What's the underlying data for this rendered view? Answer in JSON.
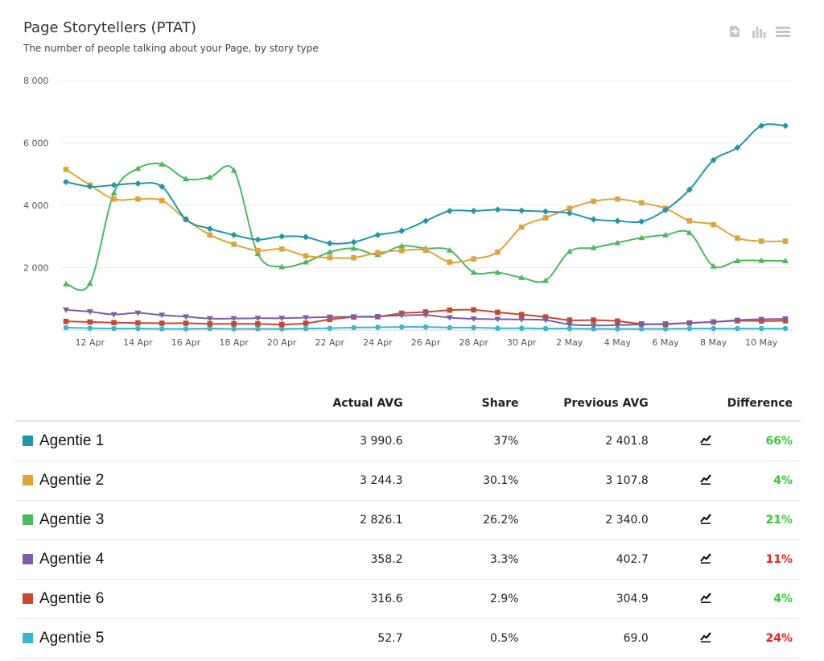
{
  "header": {
    "title": "Page Storytellers (PTAT)",
    "subtitle": "The number of people talking about your Page, by story type"
  },
  "toolbar": {
    "icons": [
      "export-icon",
      "bar-chart-icon",
      "menu-icon"
    ]
  },
  "chart_data": {
    "type": "line",
    "title": "Page Storytellers (PTAT)",
    "subtitle": "The number of people talking about your Page, by story type",
    "ylim": [
      0,
      8000
    ],
    "yticks": [
      0,
      2000,
      4000,
      6000,
      8000
    ],
    "ytick_labels": [
      "",
      "2 000",
      "4 000",
      "6 000",
      "8 000"
    ],
    "x": [
      "11 Apr",
      "12 Apr",
      "13 Apr",
      "14 Apr",
      "15 Apr",
      "16 Apr",
      "17 Apr",
      "18 Apr",
      "19 Apr",
      "20 Apr",
      "21 Apr",
      "22 Apr",
      "23 Apr",
      "24 Apr",
      "25 Apr",
      "26 Apr",
      "27 Apr",
      "28 Apr",
      "29 Apr",
      "30 Apr",
      "1 May",
      "2 May",
      "3 May",
      "4 May",
      "5 May",
      "6 May",
      "7 May",
      "8 May",
      "9 May",
      "10 May",
      "11 May"
    ],
    "xtick_labels": [
      "12 Apr",
      "14 Apr",
      "16 Apr",
      "18 Apr",
      "20 Apr",
      "22 Apr",
      "24 Apr",
      "26 Apr",
      "28 Apr",
      "30 Apr",
      "2 May",
      "4 May",
      "6 May",
      "8 May",
      "10 May"
    ],
    "series": [
      {
        "name": "Agentie 1",
        "color": "#2196a8",
        "marker": "diamond",
        "values": [
          4750,
          4600,
          4650,
          4700,
          4600,
          3550,
          3250,
          3050,
          2900,
          3000,
          2980,
          2780,
          2820,
          3050,
          3180,
          3500,
          3820,
          3820,
          3860,
          3830,
          3800,
          3750,
          3550,
          3500,
          3480,
          3850,
          4500,
          5450,
          5850,
          6550,
          6550
        ]
      },
      {
        "name": "Agentie 2",
        "color": "#e0a339",
        "marker": "square",
        "values": [
          5150,
          4650,
          4200,
          4200,
          4150,
          3550,
          3050,
          2750,
          2550,
          2600,
          2380,
          2320,
          2320,
          2480,
          2550,
          2560,
          2180,
          2280,
          2500,
          3300,
          3600,
          3900,
          4130,
          4200,
          4080,
          3900,
          3500,
          3380,
          2950,
          2850,
          2850
        ]
      },
      {
        "name": "Agentie 3",
        "color": "#4cb860",
        "marker": "triangle",
        "values": [
          1480,
          1500,
          4400,
          5180,
          5320,
          4850,
          4900,
          5120,
          2450,
          2030,
          2180,
          2500,
          2620,
          2420,
          2700,
          2620,
          2560,
          1850,
          1850,
          1680,
          1590,
          2520,
          2640,
          2800,
          2960,
          3050,
          3120,
          2050,
          2220,
          2230,
          2220
        ]
      },
      {
        "name": "Agentie 4",
        "color": "#7b5ea7",
        "marker": "triangle-down",
        "values": [
          650,
          590,
          500,
          550,
          480,
          430,
          370,
          370,
          380,
          380,
          400,
          420,
          430,
          440,
          470,
          480,
          400,
          360,
          350,
          340,
          320,
          180,
          150,
          160,
          180,
          200,
          230,
          260,
          320,
          350,
          360
        ]
      },
      {
        "name": "Agentie 6",
        "color": "#c8482f",
        "marker": "square",
        "values": [
          280,
          260,
          240,
          230,
          220,
          220,
          200,
          200,
          200,
          180,
          220,
          340,
          420,
          430,
          540,
          580,
          640,
          650,
          570,
          500,
          420,
          320,
          320,
          290,
          200,
          190,
          230,
          260,
          300,
          290,
          300
        ]
      },
      {
        "name": "Agentie 5",
        "color": "#3fb6c8",
        "marker": "circle",
        "values": [
          80,
          60,
          50,
          50,
          40,
          40,
          50,
          40,
          40,
          40,
          50,
          60,
          80,
          90,
          100,
          100,
          80,
          80,
          60,
          60,
          50,
          50,
          40,
          40,
          40,
          40,
          50,
          50,
          50,
          50,
          50
        ]
      }
    ]
  },
  "table": {
    "headers": {
      "name": "",
      "actual": "Actual AVG",
      "share": "Share",
      "previous": "Previous AVG",
      "trend": "",
      "difference": "Difference"
    },
    "rows": [
      {
        "name": "Agentie 1",
        "color": "#2196a8",
        "actual": "3 990.6",
        "share": "37%",
        "previous": "2 401.8",
        "difference": "66%",
        "diff_color": "#2ecc2e"
      },
      {
        "name": "Agentie 2",
        "color": "#e0a339",
        "actual": "3 244.3",
        "share": "30.1%",
        "previous": "3 107.8",
        "difference": "4%",
        "diff_color": "#2ecc2e"
      },
      {
        "name": "Agentie 3",
        "color": "#4cb860",
        "actual": "2 826.1",
        "share": "26.2%",
        "previous": "2 340.0",
        "difference": "21%",
        "diff_color": "#2ecc2e"
      },
      {
        "name": "Agentie 4",
        "color": "#7b5ea7",
        "actual": "358.2",
        "share": "3.3%",
        "previous": "402.7",
        "difference": "11%",
        "diff_color": "#e8201a"
      },
      {
        "name": "Agentie 6",
        "color": "#c8482f",
        "actual": "316.6",
        "share": "2.9%",
        "previous": "304.9",
        "difference": "4%",
        "diff_color": "#2ecc2e"
      },
      {
        "name": "Agentie 5",
        "color": "#3fb6c8",
        "actual": "52.7",
        "share": "0.5%",
        "previous": "69.0",
        "difference": "24%",
        "diff_color": "#e8201a"
      }
    ]
  }
}
